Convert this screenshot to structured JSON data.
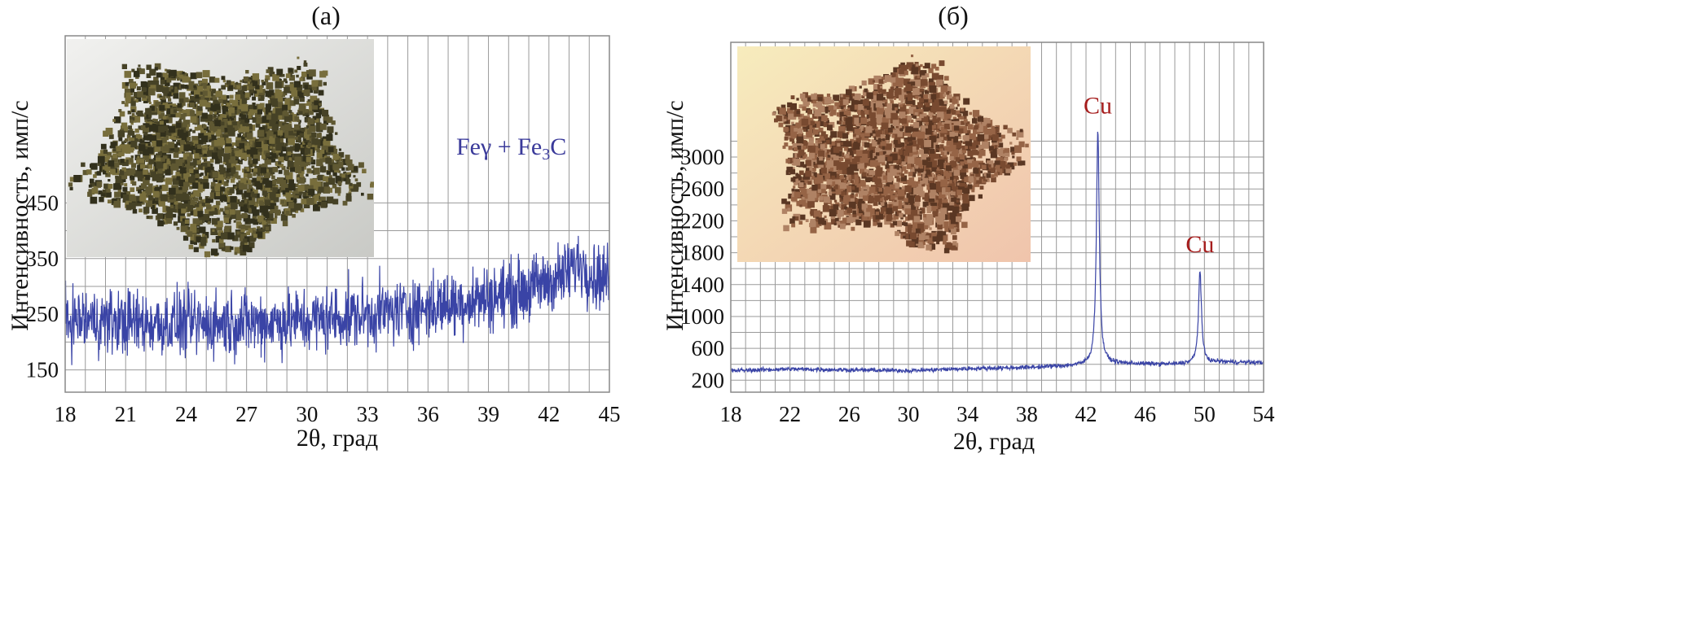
{
  "colors": {
    "line": "#3a44a6",
    "phase_label": "#3a3a9a",
    "peak_label": "#a51c1c",
    "grid": "#9a9a9a"
  },
  "chart_data": [
    {
      "type": "line",
      "panel_label": "(а)",
      "xlabel": "2θ, град",
      "ylabel": "Интенсивность, имп/с",
      "xlim": [
        18,
        45
      ],
      "ylim": [
        110,
        750
      ],
      "xticks": [
        18,
        21,
        24,
        27,
        30,
        33,
        36,
        39,
        42,
        45
      ],
      "yticks": [
        150,
        250,
        350,
        450
      ],
      "grid": true,
      "annotation": "Feγ + Fe₃C",
      "inset_photo": "gray-green powder sample",
      "series": [
        {
          "name": "XRD pattern",
          "noise_amplitude": 45,
          "baseline": [
            [
              18,
              240
            ],
            [
              24,
              232
            ],
            [
              30,
              238
            ],
            [
              33,
              250
            ],
            [
              36,
              262
            ],
            [
              39,
              280
            ],
            [
              41,
              295
            ],
            [
              42.8,
              320
            ],
            [
              43.5,
              345
            ],
            [
              44.2,
              320
            ],
            [
              45,
              315
            ]
          ],
          "peaks": []
        }
      ]
    },
    {
      "type": "line",
      "panel_label": "(б)",
      "xlabel": "2θ, град",
      "ylabel": "Интенсивность, имп/с",
      "xlim": [
        18,
        54
      ],
      "ylim": [
        50,
        4440
      ],
      "xticks": [
        18,
        22,
        26,
        30,
        34,
        38,
        42,
        46,
        50,
        54
      ],
      "yticks": [
        200,
        600,
        1000,
        1400,
        1800,
        2200,
        2600,
        3000
      ],
      "grid": true,
      "inset_photo": "brown copper powder sample",
      "series": [
        {
          "name": "XRD pattern",
          "noise_amplitude": 45,
          "baseline": [
            [
              18,
              320
            ],
            [
              22,
              340
            ],
            [
              26,
              330
            ],
            [
              30,
              320
            ],
            [
              34,
              345
            ],
            [
              38,
              360
            ],
            [
              41.5,
              385
            ],
            [
              43.5,
              410
            ],
            [
              48,
              400
            ],
            [
              51,
              430
            ],
            [
              54,
              420
            ]
          ],
          "peaks": [
            {
              "x": 42.8,
              "y": 3320,
              "label": "Cu"
            },
            {
              "x": 49.7,
              "y": 1580,
              "label": "Cu"
            }
          ]
        }
      ]
    }
  ]
}
